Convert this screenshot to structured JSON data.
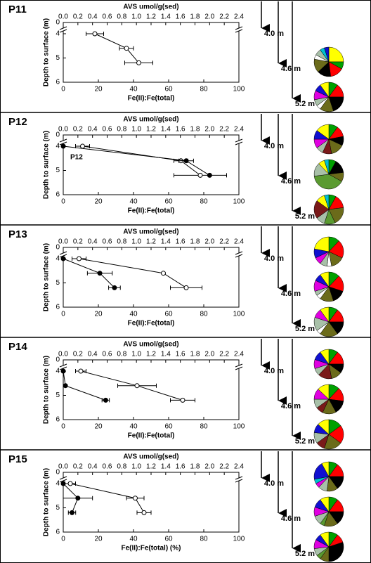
{
  "chart_data": [
    {
      "type": "line",
      "title": "P11",
      "x2_label": "AVS umol/g(sed)",
      "y_label": "Depth to surface (m)",
      "x_label": "Fe(II):Fe(total)",
      "xlim": [
        0,
        100
      ],
      "xticks": [
        0,
        20,
        40,
        60,
        80,
        100
      ],
      "x2lim": [
        0,
        2.4
      ],
      "x2ticks": [
        {
          "value": 0,
          "label": "0.0"
        },
        0.2,
        0.4,
        0.6,
        0.8,
        {
          "value": 1,
          "label": "1.0"
        },
        1.2,
        1.4,
        1.6,
        1.8,
        {
          "value": 2,
          "label": "2.0"
        },
        2.2,
        2.4
      ],
      "ylim": [
        0,
        6
      ],
      "yticks": [
        0,
        4,
        5,
        6
      ],
      "y_break": true,
      "depths": [
        4.0,
        4.6,
        5.2
      ],
      "series": [
        {
          "marker": "open",
          "color": "#000000",
          "values": [
            18,
            36,
            43
          ],
          "errors": [
            5,
            4,
            8
          ]
        }
      ],
      "depth_labels": [
        "4.0 m",
        "4.6 m",
        "5.2 m"
      ],
      "pies": [
        {
          "type": "pie",
          "values": [
            25,
            8,
            15,
            15,
            15,
            5,
            7,
            5,
            5
          ],
          "colors": [
            "#ffff00",
            "#00a000",
            "#ff0000",
            "#000000",
            "#6b6b1a",
            "#ffffff",
            "#a8c0a8",
            "#00c0d0",
            "#1010d0"
          ]
        },
        {
          "type": "pie",
          "values": [
            10,
            15,
            20,
            15,
            5,
            7,
            10,
            8,
            10
          ],
          "colors": [
            "#00a000",
            "#ff0000",
            "#000000",
            "#6b6b1a",
            "#ffffff",
            "#a8c0a8",
            "#e000e0",
            "#1010d0",
            "#ffff00"
          ]
        }
      ]
    },
    {
      "type": "line",
      "title": "P12",
      "annotation": "P12",
      "x2_label": "AVS umol/g(sed)",
      "y_label": "Depth to surface (m)",
      "x_label": "Fe(II):Fe(total)",
      "xlim": [
        0,
        100
      ],
      "xticks": [
        0,
        20,
        40,
        60,
        80,
        100
      ],
      "x2lim": [
        0,
        2.4
      ],
      "x2ticks": [
        {
          "value": 0,
          "label": "0.0"
        },
        0.2,
        0.4,
        0.6,
        0.8,
        {
          "value": 1,
          "label": "1.0"
        },
        1.2,
        1.4,
        1.6,
        1.8,
        {
          "value": 2,
          "label": "2.0"
        },
        2.2,
        2.4
      ],
      "ylim": [
        0,
        6
      ],
      "yticks": [
        0,
        4,
        5,
        6
      ],
      "y_break": true,
      "depths": [
        4.0,
        4.6,
        5.2
      ],
      "series": [
        {
          "marker": "open",
          "color": "#000000",
          "values": [
            11,
            67,
            78
          ],
          "errors": [
            4,
            4,
            15
          ]
        },
        {
          "marker": "filled",
          "axis": "x2",
          "color": "#000000",
          "values": [
            0,
            1.68,
            2.0
          ],
          "errors": [
            0,
            0.1,
            0
          ]
        }
      ],
      "depth_labels": [
        "4.0 m",
        "4.6 m",
        "5.2 m"
      ],
      "pies": [
        {
          "type": "pie",
          "values": [
            10,
            12,
            10,
            15,
            10,
            8,
            10,
            10,
            15
          ],
          "colors": [
            "#00a000",
            "#ff0000",
            "#000000",
            "#6b6b1a",
            "#7a1a1a",
            "#a8c0a8",
            "#e000e0",
            "#1010d0",
            "#ffff00"
          ]
        },
        {
          "type": "pie",
          "values": [
            8,
            15,
            10,
            40,
            15,
            7,
            5
          ],
          "colors": [
            "#00a000",
            "#000000",
            "#6b6b1a",
            "#5a9a30",
            "#a8c0a8",
            "#ffff00",
            "#00c0d0"
          ]
        },
        {
          "type": "pie",
          "values": [
            8,
            15,
            20,
            12,
            10,
            20,
            10,
            5
          ],
          "colors": [
            "#00a000",
            "#ff0000",
            "#6b6b1a",
            "#5a9a30",
            "#a8c0a8",
            "#7a1a1a",
            "#ffff00",
            "#00c0d0"
          ]
        }
      ]
    },
    {
      "type": "line",
      "title": "P13",
      "x2_label": "AVS umol/g(sed)",
      "y_label": "Depth to surface (m)",
      "x_label": "Fe(II):Fe(total)",
      "xlim": [
        0,
        100
      ],
      "xticks": [
        0,
        20,
        40,
        60,
        80,
        100
      ],
      "x2lim": [
        0,
        2.4
      ],
      "x2ticks": [
        {
          "value": 0,
          "label": "0.0"
        },
        0.2,
        0.4,
        0.6,
        0.8,
        {
          "value": 1,
          "label": "1.0"
        },
        1.2,
        1.4,
        1.6,
        1.8,
        {
          "value": 2,
          "label": "2.0"
        },
        2.2,
        2.4
      ],
      "ylim": [
        0,
        6
      ],
      "yticks": [
        0,
        4,
        5,
        6
      ],
      "y_break": true,
      "depths": [
        4.0,
        4.6,
        5.2
      ],
      "series": [
        {
          "marker": "open",
          "color": "#000000",
          "values": [
            9,
            57,
            70
          ],
          "errors": [
            4,
            0,
            9
          ]
        },
        {
          "marker": "filled",
          "axis": "x2",
          "color": "#000000",
          "values": [
            0,
            0.5,
            0.7
          ],
          "errors": [
            0,
            0.17,
            0.08
          ]
        }
      ],
      "depth_labels": [
        "4.0 m",
        "4.6 m",
        "5.2 m"
      ],
      "pies": [
        {
          "type": "pie",
          "values": [
            12,
            20,
            15,
            5,
            8,
            8,
            10,
            22
          ],
          "colors": [
            "#00a000",
            "#ff0000",
            "#6b6b1a",
            "#ffffff",
            "#a8c0a8",
            "#e000e0",
            "#1010d0",
            "#ffff00"
          ]
        },
        {
          "type": "pie",
          "values": [
            12,
            18,
            15,
            15,
            5,
            5,
            12,
            8,
            10
          ],
          "colors": [
            "#00a000",
            "#ff0000",
            "#000000",
            "#6b6b1a",
            "#ffffff",
            "#a8c0a8",
            "#e000e0",
            "#1010d0",
            "#ffff00"
          ]
        },
        {
          "type": "pie",
          "values": [
            10,
            15,
            15,
            20,
            5,
            15,
            10,
            10
          ],
          "colors": [
            "#00a000",
            "#ff0000",
            "#000000",
            "#6b6b1a",
            "#ffffff",
            "#a8c0a8",
            "#e000e0",
            "#ffff00"
          ]
        }
      ]
    },
    {
      "type": "line",
      "title": "P14",
      "x2_label": "AVS umol/g(sed)",
      "y_label": "Depth to surface (m)",
      "x_label": "Fe(II):Fe(total)",
      "xlim": [
        0,
        100
      ],
      "xticks": [
        0,
        20,
        40,
        60,
        80,
        100
      ],
      "x2lim": [
        0,
        2.4
      ],
      "x2ticks": [
        {
          "value": 0,
          "label": "0.0"
        },
        0.2,
        0.4,
        0.6,
        0.8,
        {
          "value": 1,
          "label": "1.0"
        },
        1.2,
        1.4,
        1.6,
        1.8,
        {
          "value": 2,
          "label": "2.0"
        },
        2.2,
        2.4
      ],
      "ylim": [
        0,
        6
      ],
      "yticks": [
        0,
        4,
        5,
        6
      ],
      "y_break": true,
      "depths": [
        4.0,
        4.6,
        5.2
      ],
      "series": [
        {
          "marker": "open",
          "color": "#000000",
          "values": [
            10,
            42,
            68
          ],
          "errors": [
            3,
            11,
            7
          ]
        },
        {
          "marker": "filled",
          "axis": "x2",
          "color": "#000000",
          "values": [
            0,
            0.03,
            0.58
          ],
          "errors": [
            0,
            0,
            0.05
          ]
        }
      ],
      "depth_labels": [
        "4.0 m",
        "4.6 m",
        "5.2 m"
      ],
      "pies": [
        {
          "type": "pie",
          "values": [
            10,
            15,
            10,
            12,
            15,
            8,
            10,
            10,
            10
          ],
          "colors": [
            "#00a000",
            "#ff0000",
            "#000000",
            "#6b6b1a",
            "#7a1a1a",
            "#a8c0a8",
            "#e000e0",
            "#1010d0",
            "#ffff00"
          ]
        },
        {
          "type": "pie",
          "values": [
            12,
            15,
            15,
            15,
            8,
            10,
            12,
            13
          ],
          "colors": [
            "#00a000",
            "#ff0000",
            "#000000",
            "#6b6b1a",
            "#7a1a1a",
            "#a8c0a8",
            "#e000e0",
            "#ffff00"
          ]
        },
        {
          "type": "pie",
          "values": [
            15,
            20,
            20,
            10,
            12,
            10,
            13
          ],
          "colors": [
            "#00a000",
            "#ff0000",
            "#6b6b1a",
            "#7a1a1a",
            "#a8c0a8",
            "#1010d0",
            "#ffff00"
          ]
        }
      ]
    },
    {
      "type": "line",
      "title": "P15",
      "x2_label": "AVS umol/g(sed)",
      "y_label": "Depth to surface (m)",
      "x_label": "Fe(II):Fe(total) (%)",
      "xlim": [
        0,
        100
      ],
      "xticks": [
        0,
        20,
        40,
        60,
        80,
        100
      ],
      "x2lim": [
        0,
        2.4
      ],
      "x2ticks": [
        {
          "value": 0,
          "label": "0.0"
        },
        0.2,
        0.4,
        0.6,
        0.8,
        {
          "value": 1,
          "label": "1.0"
        },
        1.2,
        1.4,
        1.6,
        1.8,
        {
          "value": 2,
          "label": "2.0"
        },
        2.2,
        2.4
      ],
      "ylim": [
        0,
        6
      ],
      "yticks": [
        0,
        4,
        5,
        6
      ],
      "y_break": true,
      "depths": [
        4.0,
        4.6,
        5.2
      ],
      "series": [
        {
          "marker": "open",
          "color": "#000000",
          "values": [
            4,
            41,
            46
          ],
          "errors": [
            3,
            5,
            4
          ]
        },
        {
          "marker": "filled",
          "axis": "x2",
          "color": "#000000",
          "values": [
            0,
            0.2,
            0.12
          ],
          "errors": [
            0,
            0.2,
            0.05
          ]
        }
      ],
      "depth_labels": [
        "4.0 m",
        "4.6 m",
        "5.2 m"
      ],
      "pies": [
        {
          "type": "pie",
          "values": [
            10,
            15,
            15,
            12,
            10,
            5,
            5,
            20,
            8
          ],
          "colors": [
            "#00a000",
            "#ff0000",
            "#000000",
            "#6b6b1a",
            "#a8c0a8",
            "#e000e0",
            "#00c0d0",
            "#1010d0",
            "#ffff00"
          ]
        },
        {
          "type": "pie",
          "values": [
            10,
            15,
            15,
            15,
            5,
            10,
            10,
            10,
            10
          ],
          "colors": [
            "#00a000",
            "#ff0000",
            "#000000",
            "#6b6b1a",
            "#5a9a30",
            "#a8c0a8",
            "#e000e0",
            "#1010d0",
            "#ffff00"
          ]
        },
        {
          "type": "pie",
          "values": [
            10,
            10,
            30,
            10,
            5,
            8,
            10,
            7,
            10
          ],
          "colors": [
            "#00a000",
            "#ff0000",
            "#000000",
            "#6b6b1a",
            "#5a9a30",
            "#a8c0a8",
            "#e000e0",
            "#1010d0",
            "#ffff00"
          ]
        }
      ]
    }
  ]
}
